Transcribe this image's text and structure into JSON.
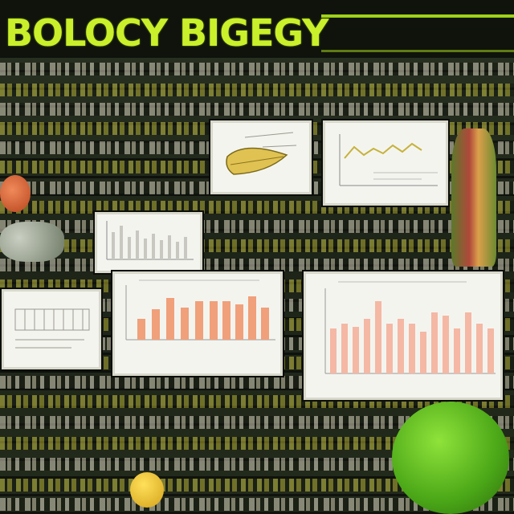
{
  "header": {
    "title": "BOLOCY BIGEGY"
  },
  "colors": {
    "title": "#c9f02a",
    "bars": "#f0a07a",
    "bars_light": "#f4b8a4",
    "sphere": "#5fc21e"
  },
  "icons": [
    "tomato-icon",
    "leaf-icon",
    "cells-icon",
    "plant-stalk-icon",
    "sphere-icon",
    "seed-icon"
  ]
}
